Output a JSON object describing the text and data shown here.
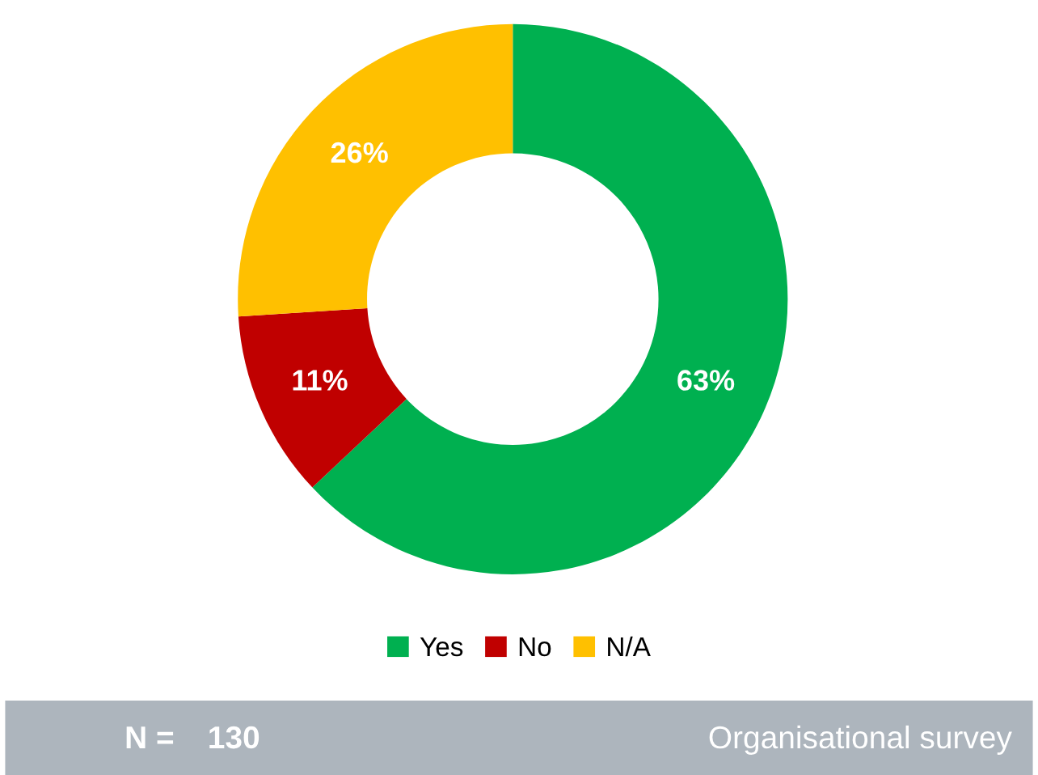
{
  "chart_data": {
    "type": "donut",
    "categories": [
      "Yes",
      "No",
      "N/A"
    ],
    "values": [
      63,
      11,
      26
    ],
    "colors": [
      "#00b050",
      "#c00000",
      "#ffc000"
    ],
    "value_labels": [
      "63%",
      "11%",
      "26%"
    ],
    "legend": "bottom",
    "annotations": [
      "N =",
      "130",
      "Organisational survey"
    ]
  }
}
